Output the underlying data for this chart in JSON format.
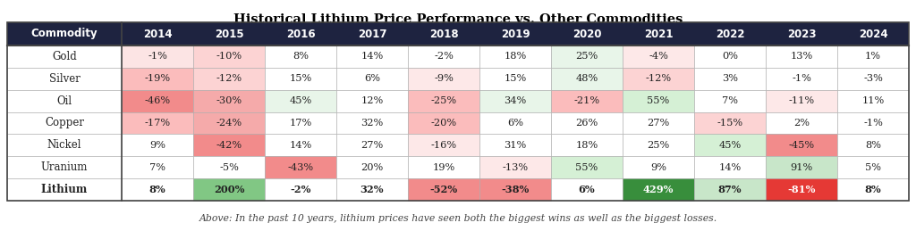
{
  "title": "Historical Lithium Price Performance vs. Other Commodities",
  "subtitle": "Above: In the past 10 years, lithium prices have seen both the biggest wins as well as the biggest losses.",
  "columns": [
    "Commodity",
    "2014",
    "2015",
    "2016",
    "2017",
    "2018",
    "2019",
    "2020",
    "2021",
    "2022",
    "2023",
    "2024"
  ],
  "rows": [
    {
      "name": "Gold",
      "values": [
        -1,
        -10,
        8,
        14,
        -2,
        18,
        25,
        -4,
        0,
        13,
        1
      ],
      "bold": false
    },
    {
      "name": "Silver",
      "values": [
        -19,
        -12,
        15,
        6,
        -9,
        15,
        48,
        -12,
        3,
        -1,
        -3
      ],
      "bold": false
    },
    {
      "name": "Oil",
      "values": [
        -46,
        -30,
        45,
        12,
        -25,
        34,
        -21,
        55,
        7,
        -11,
        11
      ],
      "bold": false
    },
    {
      "name": "Copper",
      "values": [
        -17,
        -24,
        17,
        32,
        -20,
        6,
        26,
        27,
        -15,
        2,
        -1
      ],
      "bold": false
    },
    {
      "name": "Nickel",
      "values": [
        9,
        -42,
        14,
        27,
        -16,
        31,
        18,
        25,
        45,
        -45,
        8
      ],
      "bold": false
    },
    {
      "name": "Uranium",
      "values": [
        7,
        -5,
        -43,
        20,
        19,
        -13,
        55,
        9,
        14,
        91,
        5
      ],
      "bold": false
    },
    {
      "name": "Lithium",
      "values": [
        8,
        200,
        -2,
        32,
        -52,
        -38,
        6,
        429,
        87,
        -81,
        8
      ],
      "bold": true
    }
  ],
  "header_bg": "#1e2340",
  "header_fg": "#ffffff",
  "cell_colors": {
    "Gold": [
      "#fce4e4",
      "#fcd3d3",
      "#ffffff",
      "#ffffff",
      "#ffffff",
      "#ffffff",
      "#e8f5e9",
      "#fde8e8",
      "#ffffff",
      "#ffffff",
      "#ffffff"
    ],
    "Silver": [
      "#fbbcbc",
      "#fcd3d3",
      "#ffffff",
      "#ffffff",
      "#fde8e8",
      "#ffffff",
      "#e8f5e9",
      "#fcd3d3",
      "#ffffff",
      "#ffffff",
      "#ffffff"
    ],
    "Oil": [
      "#f28b8b",
      "#f5aaaa",
      "#e8f5e9",
      "#ffffff",
      "#fbbcbc",
      "#e8f5e9",
      "#fbbcbc",
      "#d5f0d5",
      "#ffffff",
      "#fde8e8",
      "#ffffff"
    ],
    "Copper": [
      "#fbbcbc",
      "#f5aaaa",
      "#ffffff",
      "#ffffff",
      "#fbbcbc",
      "#ffffff",
      "#ffffff",
      "#ffffff",
      "#fcd3d3",
      "#ffffff",
      "#ffffff"
    ],
    "Nickel": [
      "#ffffff",
      "#f28b8b",
      "#ffffff",
      "#ffffff",
      "#fde8e8",
      "#ffffff",
      "#ffffff",
      "#ffffff",
      "#d5f0d5",
      "#f28b8b",
      "#ffffff"
    ],
    "Uranium": [
      "#ffffff",
      "#ffffff",
      "#f28b8b",
      "#ffffff",
      "#ffffff",
      "#fde8e8",
      "#d5f0d5",
      "#ffffff",
      "#ffffff",
      "#c8e6c9",
      "#ffffff"
    ],
    "Lithium": [
      "#ffffff",
      "#81c784",
      "#ffffff",
      "#ffffff",
      "#f28b8b",
      "#f28b8b",
      "#ffffff",
      "#388e3c",
      "#c8e6c9",
      "#e53935",
      "#ffffff"
    ]
  },
  "lithium_text_white": [
    false,
    false,
    false,
    false,
    false,
    false,
    false,
    true,
    false,
    true,
    false
  ]
}
